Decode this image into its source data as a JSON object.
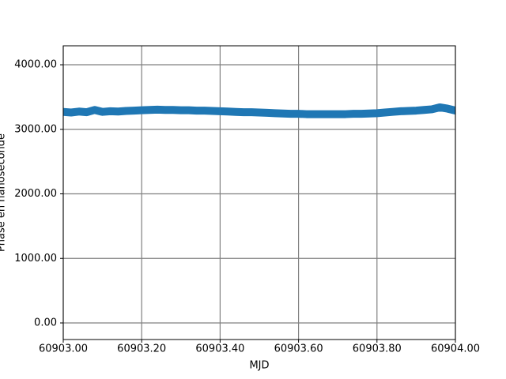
{
  "chart_data": {
    "type": "line",
    "xlabel": "MJD",
    "ylabel": "Phase en nanoseconde",
    "x": [
      60903.0,
      60903.02,
      60903.04,
      60903.06,
      60903.08,
      60903.1,
      60903.12,
      60903.14,
      60903.16,
      60903.18,
      60903.2,
      60903.22,
      60903.24,
      60903.26,
      60903.28,
      60903.3,
      60903.32,
      60903.34,
      60903.36,
      60903.38,
      60903.4,
      60903.42,
      60903.44,
      60903.46,
      60903.48,
      60903.5,
      60903.52,
      60903.54,
      60903.56,
      60903.58,
      60903.6,
      60903.62,
      60903.64,
      60903.66,
      60903.68,
      60903.7,
      60903.72,
      60903.74,
      60903.76,
      60903.78,
      60903.8,
      60903.82,
      60903.84,
      60903.86,
      60903.88,
      60903.9,
      60903.92,
      60903.94,
      60903.96,
      60903.98,
      60904.0
    ],
    "series": [
      {
        "color": "#1f77b4",
        "values": [
          3270,
          3260,
          3275,
          3265,
          3300,
          3270,
          3280,
          3275,
          3285,
          3290,
          3295,
          3300,
          3305,
          3300,
          3300,
          3295,
          3295,
          3290,
          3290,
          3285,
          3280,
          3275,
          3270,
          3265,
          3265,
          3260,
          3255,
          3250,
          3245,
          3240,
          3240,
          3235,
          3235,
          3235,
          3235,
          3235,
          3235,
          3240,
          3240,
          3245,
          3250,
          3260,
          3270,
          3280,
          3285,
          3290,
          3300,
          3310,
          3340,
          3320,
          3290
        ]
      }
    ],
    "xlim": [
      60903.0,
      60904.0
    ],
    "xticks": [
      {
        "value": 60903.0,
        "label": "60903.00"
      },
      {
        "value": 60903.2,
        "label": "60903.20"
      },
      {
        "value": 60903.4,
        "label": "60903.40"
      },
      {
        "value": 60903.6,
        "label": "60903.60"
      },
      {
        "value": 60903.8,
        "label": "60903.80"
      },
      {
        "value": 60904.0,
        "label": "60904.00"
      }
    ],
    "ylim": [
      -257,
      4294
    ],
    "yticks": [
      {
        "value": 0,
        "label": "0.00"
      },
      {
        "value": 1000,
        "label": "1000.00"
      },
      {
        "value": 2000,
        "label": "2000.00"
      },
      {
        "value": 3000,
        "label": "3000.00"
      },
      {
        "value": 4000,
        "label": "4000.00"
      }
    ],
    "grid": true
  }
}
